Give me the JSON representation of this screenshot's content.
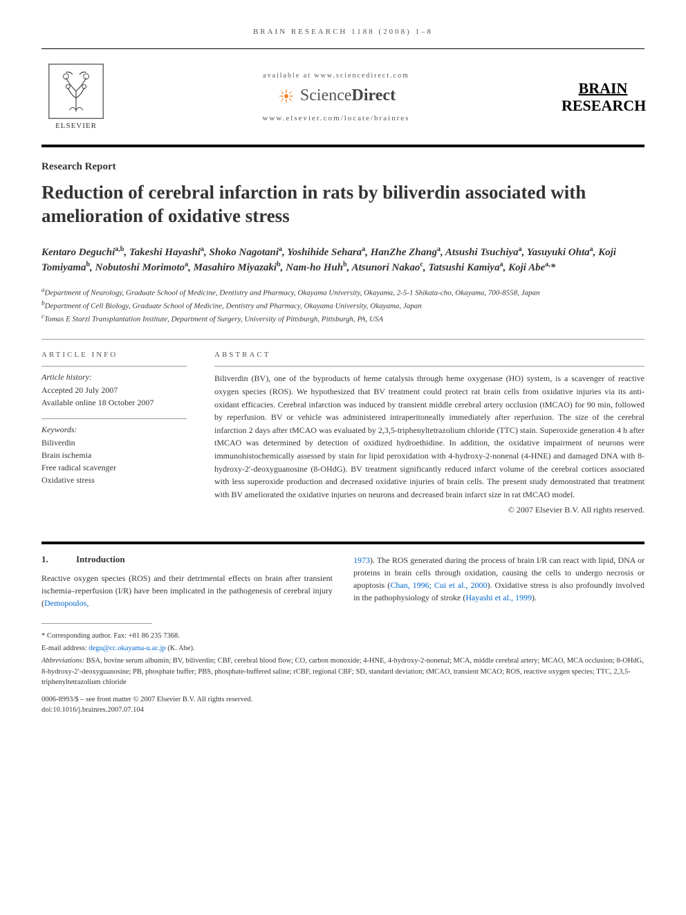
{
  "header": {
    "meta_line": "BRAIN RESEARCH 1188 (2008) 1–8",
    "available_at": "available at www.sciencedirect.com",
    "sd_brand_left": "Science",
    "sd_brand_right": "Direct",
    "journal_url": "www.elsevier.com/locate/brainres",
    "elsevier_label": "ELSEVIER",
    "journal_name_l1": "BRAIN",
    "journal_name_l2": "RESEARCH"
  },
  "article": {
    "section_label": "Research Report",
    "title": "Reduction of cerebral infarction in rats by biliverdin associated with amelioration of oxidative stress"
  },
  "authors_html": "Kentaro Deguchi<sup>a,b</sup>, Takeshi Hayashi<sup>a</sup>, Shoko Nagotani<sup>a</sup>, Yoshihide Sehara<sup>a</sup>, HanZhe Zhang<sup>a</sup>, Atsushi Tsuchiya<sup>a</sup>, Yasuyuki Ohta<sup>a</sup>, Koji Tomiyama<sup>b</sup>, Nobutoshi Morimoto<sup>a</sup>, Masahiro Miyazaki<sup>b</sup>, Nam-ho Huh<sup>b</sup>, Atsunori Nakao<sup>c</sup>, Tatsushi Kamiya<sup>a</sup>, Koji Abe<sup>a,</sup>*",
  "affiliations": [
    {
      "sup": "a",
      "text": "Department of Neurology, Graduate School of Medicine, Dentistry and Pharmacy, Okayama University, Okayama, 2-5-1 Shikata-cho, Okayama, 700-8558, Japan"
    },
    {
      "sup": "b",
      "text": "Department of Cell Biology, Graduate School of Medicine, Dentistry and Pharmacy, Okayama University, Okayama, Japan"
    },
    {
      "sup": "c",
      "text": "Tomas E Starzl Transplantation Institute, Department of Surgery, University of Pittsburgh, Pittsburgh, PA, USA"
    }
  ],
  "info": {
    "heading": "ARTICLE INFO",
    "history_label": "Article history:",
    "history_accepted": "Accepted 20 July 2007",
    "history_online": "Available online 18 October 2007",
    "keywords_label": "Keywords:",
    "keywords": [
      "Biliverdin",
      "Brain ischemia",
      "Free radical scavenger",
      "Oxidative stress"
    ]
  },
  "abstract": {
    "heading": "ABSTRACT",
    "text": "Biliverdin (BV), one of the byproducts of heme catalysis through heme oxygenase (HO) system, is a scavenger of reactive oxygen species (ROS). We hypothesized that BV treatment could protect rat brain cells from oxidative injuries via its anti-oxidant efficacies. Cerebral infarction was induced by transient middle cerebral artery occlusion (tMCAO) for 90 min, followed by reperfusion. BV or vehicle was administered intraperitoneally immediately after reperfusion. The size of the cerebral infarction 2 days after tMCAO was evaluated by 2,3,5-triphenyltetrazolium chloride (TTC) stain. Superoxide generation 4 h after tMCAO was determined by detection of oxidized hydroethidine. In addition, the oxidative impairment of neurons were immunohistochemically assessed by stain for lipid peroxidation with 4-hydroxy-2-nonenal (4-HNE) and damaged DNA with 8-hydroxy-2′-deoxyguanosine (8-OHdG). BV treatment significantly reduced infarct volume of the cerebral cortices associated with less superoxide production and decreased oxidative injuries of brain cells. The present study demonstrated that treatment with BV ameliorated the oxidative injuries on neurons and decreased brain infarct size in rat tMCAO model.",
    "copyright": "© 2007 Elsevier B.V. All rights reserved."
  },
  "intro": {
    "num": "1.",
    "heading": "Introduction",
    "left_text": "Reactive oxygen species (ROS) and their detrimental effects on brain after transient ischemia–reperfusion (I/R) have been implicated in the pathogenesis of cerebral injury (",
    "left_cite": "Demopoulos,",
    "right_cite1": "1973",
    "right_text1": "). The ROS generated during the process of brain I/R can react with lipid, DNA or proteins in brain cells through oxidation, causing the cells to undergo necrosis or apoptosis (",
    "right_cite2": "Chan, 1996; Cui et al., 2000",
    "right_text2": "). Oxidative stress is also profoundly involved in the pathophysiology of stroke (",
    "right_cite3": "Hayashi et al., 1999",
    "right_text3": ")."
  },
  "footnotes": {
    "corresponding_label": "* Corresponding author.",
    "corresponding_fax": "Fax: +81 86 235 7368.",
    "email_label": "E-mail address:",
    "email": "degu@cc.okayama-u.ac.jp",
    "email_author": "(K. Abe).",
    "abbrev_label": "Abbreviations:",
    "abbrev_text": "BSA, bovine serum albumin; BV, biliverdin; CBF, cerebral blood flow; CO, carbon monoxide; 4-HNE, 4-hydroxy-2-nonenal; MCA, middle cerebral artery; MCAO, MCA occlusion; 8-OHdG, 8-hydroxy-2′-deoxyguanosine; PB, phosphate buffer; PBS, phosphate-buffered saline; rCBF, regional CBF; SD, standard deviation; tMCAO, transient MCAO; ROS, reactive oxygen species; TTC, 2,3,5-triphenyltetrazolium chloride"
  },
  "doi": {
    "line1": "0006-8993/$ – see front matter © 2007 Elsevier B.V. All rights reserved.",
    "line2": "doi:10.1016/j.brainres.2007.07.104"
  },
  "colors": {
    "text": "#333333",
    "link": "#0066cc",
    "rule": "#000000",
    "light_rule": "#999999",
    "sd_orange": "#f58220"
  }
}
